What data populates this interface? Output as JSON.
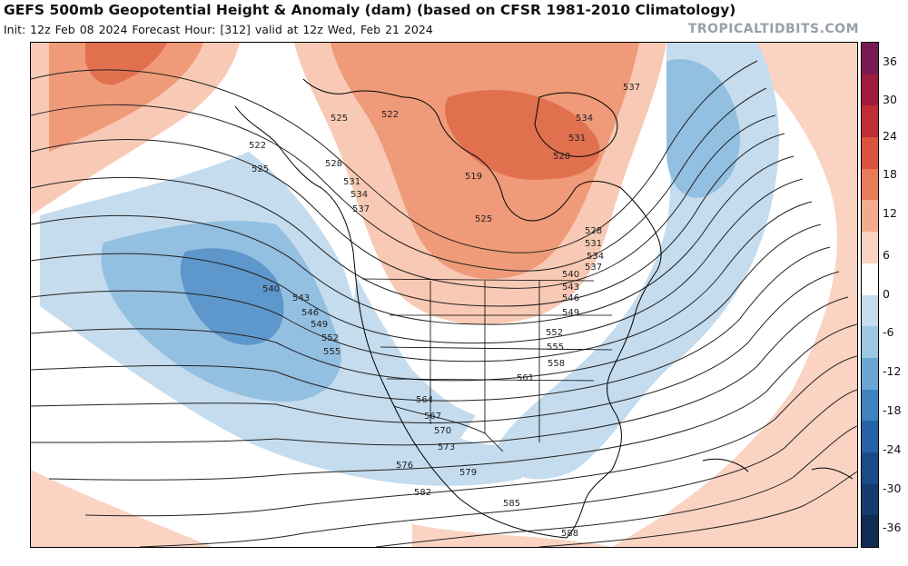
{
  "header": {
    "title": "GEFS 500mb Geopotential Height & Anomaly (dam) (based on CFSR 1981-2010 Climatology)",
    "subtitle": "Init: 12z Feb 08 2024   Forecast Hour: [312]   valid at 12z Wed, Feb 21 2024",
    "brand": "TROPICALTIDBITS.COM"
  },
  "colorbar": {
    "labels": [
      "36",
      "30",
      "24",
      "18",
      "12",
      "6",
      "0",
      "-6",
      "-12",
      "-18",
      "-24",
      "-30",
      "-36"
    ],
    "colors": [
      "#7a1a55",
      "#9e1b3b",
      "#bf2e33",
      "#d9543d",
      "#e87b59",
      "#f3ab90",
      "#fad3c2",
      "#ffffff",
      "#c6dcee",
      "#9ec7e3",
      "#6aa6d3",
      "#3f83bf",
      "#2563a6",
      "#1a4a8a",
      "#143a6e",
      "#0f2c55"
    ]
  },
  "map": {
    "anomaly_colors": {
      "warm_light": "#f8c9b4",
      "warm_mid": "#ef9a78",
      "warm_dark": "#e1704f",
      "cool_light": "#c4dcee",
      "cool_mid": "#93bfe1",
      "cool_dark": "#5d97cb"
    },
    "contour_labels": [
      "522",
      "525",
      "522",
      "525",
      "528",
      "531",
      "534",
      "537",
      "519",
      "525",
      "528",
      "531",
      "534",
      "537",
      "540",
      "543",
      "546",
      "549",
      "537",
      "534",
      "531",
      "528",
      "540",
      "543",
      "546",
      "549",
      "552",
      "555",
      "552",
      "555",
      "558",
      "561",
      "564",
      "567",
      "570",
      "573",
      "576",
      "579",
      "582",
      "585",
      "588"
    ]
  }
}
